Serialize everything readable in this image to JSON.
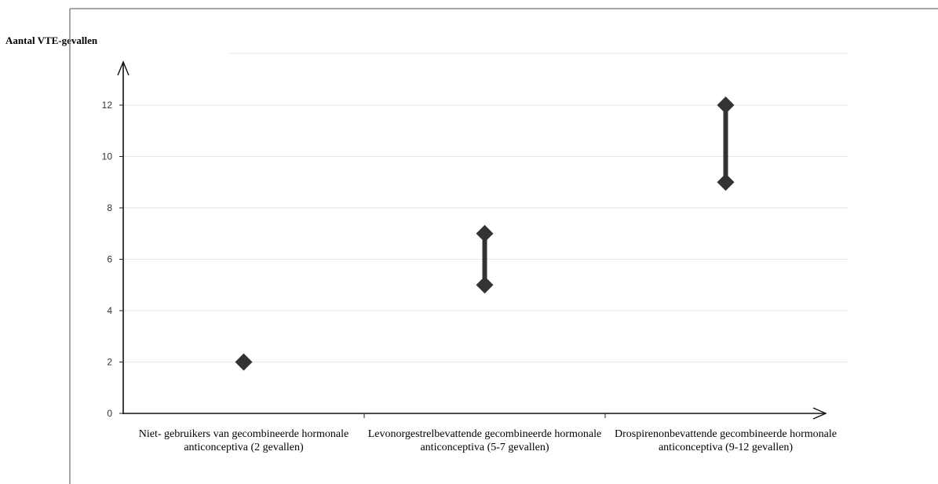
{
  "chart_data": {
    "type": "scatter",
    "ylabel": "Aantal VTE-gevallen",
    "xlabel": "",
    "ylim": [
      0,
      13
    ],
    "yticks": [
      "0",
      "2",
      "4",
      "6",
      "8",
      "10",
      "12"
    ],
    "grid": true,
    "categories": [
      "Niet- gebruikers van gecombineerde hormonale anticonceptiva (2 gevallen)",
      "Levonorgestrelbevattende gecombineerde hormonale anticonceptiva (5-7 gevallen)",
      "Drospirenonbevattende gecombineerde hormonale anticonceptiva (9-12 gevallen)"
    ],
    "ranges": [
      {
        "low": 2,
        "high": 2
      },
      {
        "low": 5,
        "high": 7
      },
      {
        "low": 9,
        "high": 12
      }
    ],
    "marker_color": "#333333"
  }
}
